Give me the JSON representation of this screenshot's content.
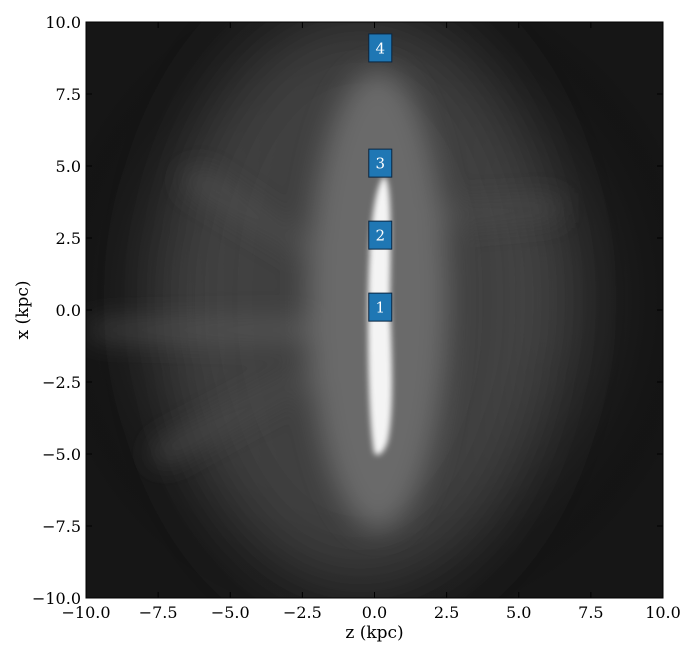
{
  "chart_data": {
    "type": "heatmap",
    "title": "",
    "xlabel": "z  (kpc)",
    "ylabel": "x  (kpc)",
    "xlim": [
      -10,
      10
    ],
    "ylim": [
      -10,
      10
    ],
    "colormap": "grayscale",
    "grid": false,
    "x_ticks": [
      -10.0,
      -7.5,
      -5.0,
      -2.5,
      0.0,
      2.5,
      5.0,
      7.5,
      10.0
    ],
    "y_ticks": [
      -10.0,
      -7.5,
      -5.0,
      -2.5,
      0.0,
      2.5,
      5.0,
      7.5,
      10.0
    ],
    "x_tick_labels": [
      "−10.0",
      "−7.5",
      "−5.0",
      "−2.5",
      "0.0",
      "2.5",
      "5.0",
      "7.5",
      "10.0"
    ],
    "y_tick_labels": [
      "−10.0",
      "−7.5",
      "−5.0",
      "−2.5",
      "0.0",
      "2.5",
      "5.0",
      "7.5",
      "10.0"
    ],
    "features": {
      "bright_disk": {
        "z_center": 0.2,
        "x_range": [
          -5.0,
          4.7
        ]
      }
    },
    "markers": [
      {
        "label": "1",
        "z": 0.2,
        "x": 0.1
      },
      {
        "label": "2",
        "z": 0.2,
        "x": 2.6
      },
      {
        "label": "3",
        "z": 0.2,
        "x": 5.1
      },
      {
        "label": "4",
        "z": 0.2,
        "x": 9.1
      }
    ],
    "marker_color": "#1f77b4"
  }
}
